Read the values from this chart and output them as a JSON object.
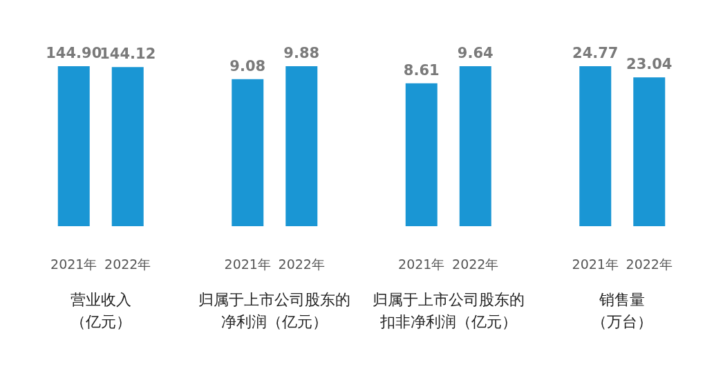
{
  "chart_data": [
    {
      "type": "bar",
      "categories": [
        "2021年",
        "2022年"
      ],
      "values": [
        144.9,
        144.12
      ],
      "color": "#1a96d4",
      "data_labels": true,
      "value_labels": [
        "144.90",
        "144.12"
      ],
      "xlabel": "营业收入（亿元）"
    },
    {
      "type": "bar",
      "categories": [
        "2021年",
        "2022年"
      ],
      "values": [
        9.08,
        9.88
      ],
      "color": "#1a96d4",
      "data_labels": true,
      "value_labels": [
        "9.08",
        "9.88"
      ],
      "xlabel": "归属于上市公司股东的净利润（亿元）"
    },
    {
      "type": "bar",
      "categories": [
        "2021年",
        "2022年"
      ],
      "values": [
        8.61,
        9.64
      ],
      "color": "#1a96d4",
      "data_labels": true,
      "value_labels": [
        "8.61",
        "9.64"
      ],
      "xlabel": "归属于上市公司股东的扣非净利润（亿元）"
    },
    {
      "type": "bar",
      "categories": [
        "2021年",
        "2022年"
      ],
      "values": [
        24.77,
        23.04
      ],
      "color": "#1a96d4",
      "data_labels": true,
      "value_labels": [
        "24.77",
        "23.04"
      ],
      "xlabel": "销售量（万台）"
    }
  ]
}
